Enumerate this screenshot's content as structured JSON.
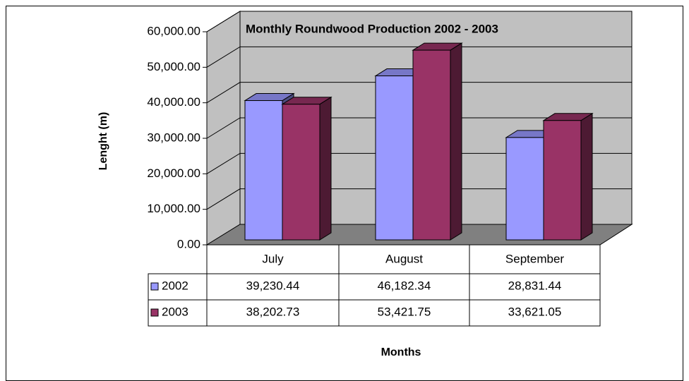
{
  "chart_data": {
    "type": "bar",
    "title": "Monthly Roundwood Production 2002 - 2003",
    "xlabel": "Months",
    "ylabel": "Lenght (m)",
    "categories": [
      "July",
      "August",
      "September"
    ],
    "series": [
      {
        "name": "2002",
        "color": "#9999ff",
        "values": [
          39230.44,
          46182.34,
          28831.44
        ],
        "value_labels": [
          "39,230.44",
          "46,182.34",
          "28,831.44"
        ]
      },
      {
        "name": "2003",
        "color": "#993366",
        "values": [
          38202.73,
          53421.75,
          33621.05
        ],
        "value_labels": [
          "38,202.73",
          "53,421.75",
          "33,621.05"
        ]
      }
    ],
    "ylim": [
      0,
      60000
    ],
    "yticks": [
      {
        "value": 0,
        "label": "0.00"
      },
      {
        "value": 10000,
        "label": "10,000.00"
      },
      {
        "value": 20000,
        "label": "20,000.00"
      },
      {
        "value": 30000,
        "label": "30,000.00"
      },
      {
        "value": 40000,
        "label": "40,000.00"
      },
      {
        "value": 50000,
        "label": "50,000.00"
      },
      {
        "value": 60000,
        "label": "60,000.00"
      }
    ],
    "grid": true
  }
}
